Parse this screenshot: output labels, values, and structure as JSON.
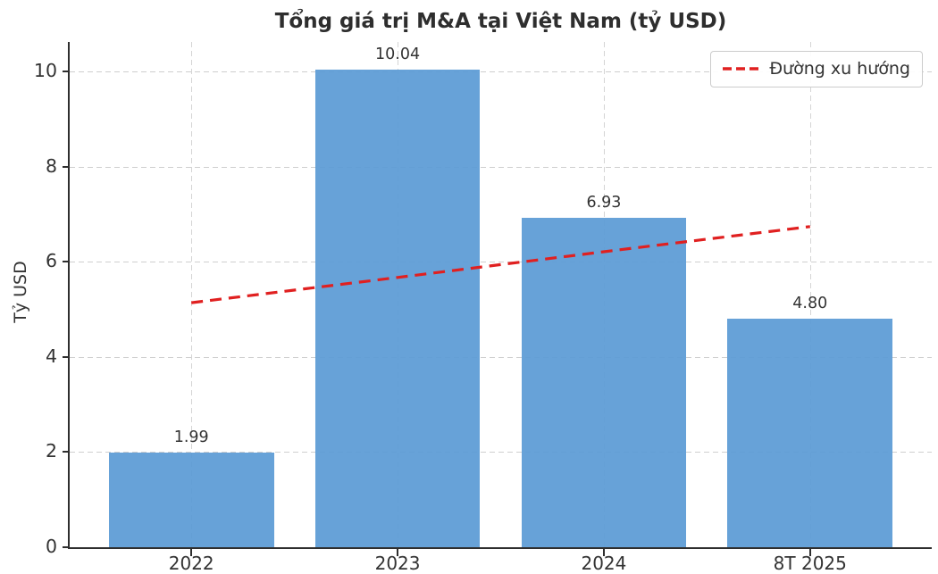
{
  "figure": {
    "background": "#ffffff"
  },
  "chart_data": {
    "type": "bar",
    "title": "Tổng giá trị M&A tại Việt Nam (tỷ USD)",
    "xlabel": "",
    "ylabel": "Tỷ USD",
    "categories": [
      "2022",
      "2023",
      "2024",
      "8T 2025"
    ],
    "values": [
      1.99,
      10.04,
      6.93,
      4.8
    ],
    "value_labels": [
      "1.99",
      "10.04",
      "6.93",
      "4.80"
    ],
    "bar_color": "#5b9bd5",
    "trend_line": {
      "label": "Đường xu hướng",
      "values_at_categories": [
        5.14,
        5.67,
        6.21,
        6.74
      ],
      "color": "#e02020",
      "style": "dashed"
    },
    "yticks": [
      0,
      2,
      4,
      6,
      8,
      10
    ],
    "ylim": [
      0,
      10.62
    ],
    "grid": true,
    "legend_position": "upper right",
    "text_color": "#333333",
    "grid_color": "#cfcfcf"
  }
}
